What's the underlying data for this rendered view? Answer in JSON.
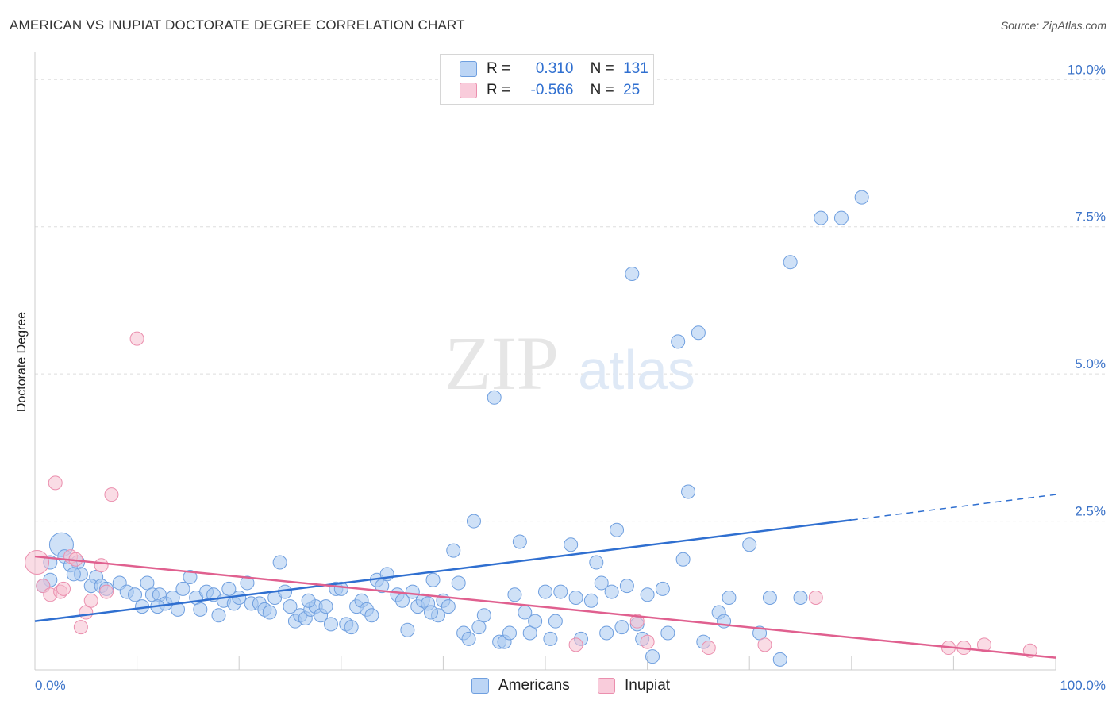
{
  "title": "AMERICAN VS INUPIAT DOCTORATE DEGREE CORRELATION CHART",
  "source": "Source: ZipAtlas.com",
  "watermark": {
    "zip": "ZIP",
    "atlas": "atlas"
  },
  "colors": {
    "americans_fill": "#a8c8f0",
    "americans_stroke": "#6f9fdf",
    "americans_line": "#2f6fd0",
    "inupiat_fill": "#f6bfd0",
    "inupiat_stroke": "#eb8fae",
    "inupiat_line": "#e0608f",
    "axis_text": "#3a72c8",
    "grid": "#dddddd"
  },
  "legend": {
    "rows": [
      {
        "r_label": "R =",
        "r_value": "0.310",
        "n_label": "N =",
        "n_value": "131"
      },
      {
        "r_label": "R =",
        "r_value": "-0.566",
        "n_label": "N =",
        "n_value": "25"
      }
    ]
  },
  "bottom_legend": {
    "americans": "Americans",
    "inupiat": "Inupiat"
  },
  "chart_data": {
    "type": "scatter",
    "title": "AMERICAN VS INUPIAT DOCTORATE DEGREE CORRELATION CHART",
    "xlabel": "",
    "ylabel": "Doctorate Degree",
    "xlim": [
      0,
      100
    ],
    "ylim": [
      0,
      10.3
    ],
    "x_tick_labels": [
      "0.0%",
      "100.0%"
    ],
    "y_ticks": [
      2.5,
      5.0,
      7.5,
      10.0
    ],
    "y_tick_labels": [
      "2.5%",
      "5.0%",
      "7.5%",
      "10.0%"
    ],
    "grid": true,
    "legend_position": "top-center",
    "series": [
      {
        "name": "Americans",
        "r": 0.31,
        "n": 131,
        "trend": {
          "x0": 0,
          "y0": 0.8,
          "x1": 80,
          "y1": 2.52,
          "dashed_to_x": 100,
          "dashed_to_y": 2.95
        },
        "points": [
          [
            2.6,
            2.1,
            2
          ],
          [
            2.9,
            1.9,
            1
          ],
          [
            4.2,
            1.8,
            1
          ],
          [
            1.5,
            1.8,
            1
          ],
          [
            3.5,
            1.75,
            1
          ],
          [
            4.5,
            1.6,
            1
          ],
          [
            1.5,
            1.5,
            1
          ],
          [
            6.0,
            1.55,
            1
          ],
          [
            3.8,
            1.6,
            1
          ],
          [
            5.5,
            1.4,
            1
          ],
          [
            0.8,
            1.4,
            1
          ],
          [
            6.5,
            1.4,
            1
          ],
          [
            7.0,
            1.35,
            1
          ],
          [
            8.3,
            1.45,
            1
          ],
          [
            9.0,
            1.3,
            1
          ],
          [
            9.8,
            1.25,
            1
          ],
          [
            10.5,
            1.05,
            1
          ],
          [
            11.0,
            1.45,
            1
          ],
          [
            11.5,
            1.25,
            1
          ],
          [
            12.2,
            1.25,
            1
          ],
          [
            12.8,
            1.1,
            1
          ],
          [
            13.5,
            1.2,
            1
          ],
          [
            14.0,
            1.0,
            1
          ],
          [
            14.5,
            1.35,
            1
          ],
          [
            15.2,
            1.55,
            1
          ],
          [
            15.8,
            1.2,
            1
          ],
          [
            16.2,
            1.0,
            1
          ],
          [
            16.8,
            1.3,
            1
          ],
          [
            17.5,
            1.25,
            1
          ],
          [
            18.0,
            0.9,
            1
          ],
          [
            18.5,
            1.15,
            1
          ],
          [
            19.0,
            1.35,
            1
          ],
          [
            19.5,
            1.1,
            1
          ],
          [
            20.0,
            1.2,
            1
          ],
          [
            20.8,
            1.45,
            1
          ],
          [
            21.2,
            1.1,
            1
          ],
          [
            22.0,
            1.1,
            1
          ],
          [
            22.5,
            1.0,
            1
          ],
          [
            23.0,
            0.95,
            1
          ],
          [
            23.5,
            1.2,
            1
          ],
          [
            24.0,
            1.8,
            1
          ],
          [
            24.5,
            1.3,
            1
          ],
          [
            25.0,
            1.05,
            1
          ],
          [
            25.5,
            0.8,
            1
          ],
          [
            26.0,
            0.9,
            1
          ],
          [
            26.5,
            0.85,
            1
          ],
          [
            27.0,
            1.0,
            1
          ],
          [
            27.5,
            1.05,
            1
          ],
          [
            28.0,
            0.9,
            1
          ],
          [
            28.5,
            1.05,
            1
          ],
          [
            29.0,
            0.75,
            1
          ],
          [
            29.5,
            1.35,
            1
          ],
          [
            30.0,
            1.35,
            1
          ],
          [
            30.5,
            0.75,
            1
          ],
          [
            31.0,
            0.7,
            1
          ],
          [
            31.5,
            1.05,
            1
          ],
          [
            32.0,
            1.15,
            1
          ],
          [
            32.5,
            1.0,
            1
          ],
          [
            33.0,
            0.9,
            1
          ],
          [
            33.5,
            1.5,
            1
          ],
          [
            34.0,
            1.4,
            1
          ],
          [
            34.5,
            1.6,
            1
          ],
          [
            35.5,
            1.25,
            1
          ],
          [
            36.0,
            1.15,
            1
          ],
          [
            36.5,
            0.65,
            1
          ],
          [
            37.0,
            1.3,
            1
          ],
          [
            37.5,
            1.05,
            1
          ],
          [
            38.0,
            1.15,
            1
          ],
          [
            38.5,
            1.1,
            1
          ],
          [
            39.0,
            1.5,
            1
          ],
          [
            39.5,
            0.9,
            1
          ],
          [
            40.0,
            1.15,
            1
          ],
          [
            40.5,
            1.05,
            1
          ],
          [
            41.0,
            2.0,
            1
          ],
          [
            41.5,
            1.45,
            1
          ],
          [
            42.0,
            0.6,
            1
          ],
          [
            42.5,
            0.5,
            1
          ],
          [
            43.0,
            2.5,
            1
          ],
          [
            43.5,
            0.7,
            1
          ],
          [
            44.0,
            0.9,
            1
          ],
          [
            45.0,
            4.6,
            1
          ],
          [
            45.5,
            0.45,
            1
          ],
          [
            46.0,
            0.45,
            1
          ],
          [
            47.0,
            1.25,
            1
          ],
          [
            47.5,
            2.15,
            1
          ],
          [
            48.0,
            0.95,
            1
          ],
          [
            48.5,
            0.6,
            1
          ],
          [
            49.0,
            0.8,
            1
          ],
          [
            50.0,
            1.3,
            1
          ],
          [
            50.5,
            0.5,
            1
          ],
          [
            51.0,
            0.8,
            1
          ],
          [
            51.5,
            1.3,
            1
          ],
          [
            52.5,
            2.1,
            1
          ],
          [
            53.0,
            1.2,
            1
          ],
          [
            53.5,
            0.5,
            1
          ],
          [
            54.5,
            1.15,
            1
          ],
          [
            55.0,
            1.8,
            1
          ],
          [
            55.5,
            1.45,
            1
          ],
          [
            56.0,
            0.6,
            1
          ],
          [
            56.5,
            1.3,
            1
          ],
          [
            57.0,
            2.35,
            1
          ],
          [
            57.5,
            0.7,
            1
          ],
          [
            58.0,
            1.4,
            1
          ],
          [
            58.5,
            6.7,
            1
          ],
          [
            59.0,
            0.75,
            1
          ],
          [
            59.5,
            0.5,
            1
          ],
          [
            60.0,
            1.25,
            1
          ],
          [
            60.5,
            0.2,
            1
          ],
          [
            61.5,
            1.35,
            1
          ],
          [
            62.0,
            0.6,
            1
          ],
          [
            63.0,
            5.55,
            1
          ],
          [
            63.5,
            1.85,
            1
          ],
          [
            64.0,
            3.0,
            1
          ],
          [
            65.0,
            5.7,
            1
          ],
          [
            65.5,
            0.45,
            1
          ],
          [
            67.0,
            0.95,
            1
          ],
          [
            67.5,
            0.8,
            1
          ],
          [
            68.0,
            1.2,
            1
          ],
          [
            70.0,
            2.1,
            1
          ],
          [
            71.0,
            0.6,
            1
          ],
          [
            72.0,
            1.2,
            1
          ],
          [
            73.0,
            0.15,
            1
          ],
          [
            74.0,
            6.9,
            1
          ],
          [
            75.0,
            1.2,
            1
          ],
          [
            77.0,
            7.65,
            1
          ],
          [
            79.0,
            7.65,
            1
          ],
          [
            81.0,
            8.0,
            1
          ],
          [
            46.5,
            0.6,
            1
          ],
          [
            38.8,
            0.95,
            1
          ],
          [
            26.8,
            1.15,
            1
          ],
          [
            12.0,
            1.05,
            1
          ]
        ]
      },
      {
        "name": "Inupiat",
        "r": -0.566,
        "n": 25,
        "trend": {
          "x0": 0,
          "y0": 1.9,
          "x1": 100,
          "y1": 0.18
        },
        "points": [
          [
            0.2,
            1.8,
            2
          ],
          [
            0.8,
            1.4,
            1
          ],
          [
            1.5,
            1.25,
            1
          ],
          [
            2.0,
            3.15,
            1
          ],
          [
            2.5,
            1.3,
            1
          ],
          [
            2.8,
            1.35,
            1
          ],
          [
            3.5,
            1.9,
            1
          ],
          [
            4.0,
            1.85,
            1
          ],
          [
            4.5,
            0.7,
            1
          ],
          [
            5.0,
            0.95,
            1
          ],
          [
            5.5,
            1.15,
            1
          ],
          [
            6.5,
            1.75,
            1
          ],
          [
            7.5,
            2.95,
            1
          ],
          [
            10.0,
            5.6,
            1
          ],
          [
            7.0,
            1.3,
            1
          ],
          [
            53.0,
            0.4,
            1
          ],
          [
            59.0,
            0.8,
            1
          ],
          [
            60.0,
            0.45,
            1
          ],
          [
            76.5,
            1.2,
            1
          ],
          [
            66.0,
            0.35,
            1
          ],
          [
            71.5,
            0.4,
            1
          ],
          [
            89.5,
            0.35,
            1
          ],
          [
            91.0,
            0.35,
            1
          ],
          [
            93.0,
            0.4,
            1
          ],
          [
            97.5,
            0.3,
            1
          ]
        ]
      }
    ]
  }
}
